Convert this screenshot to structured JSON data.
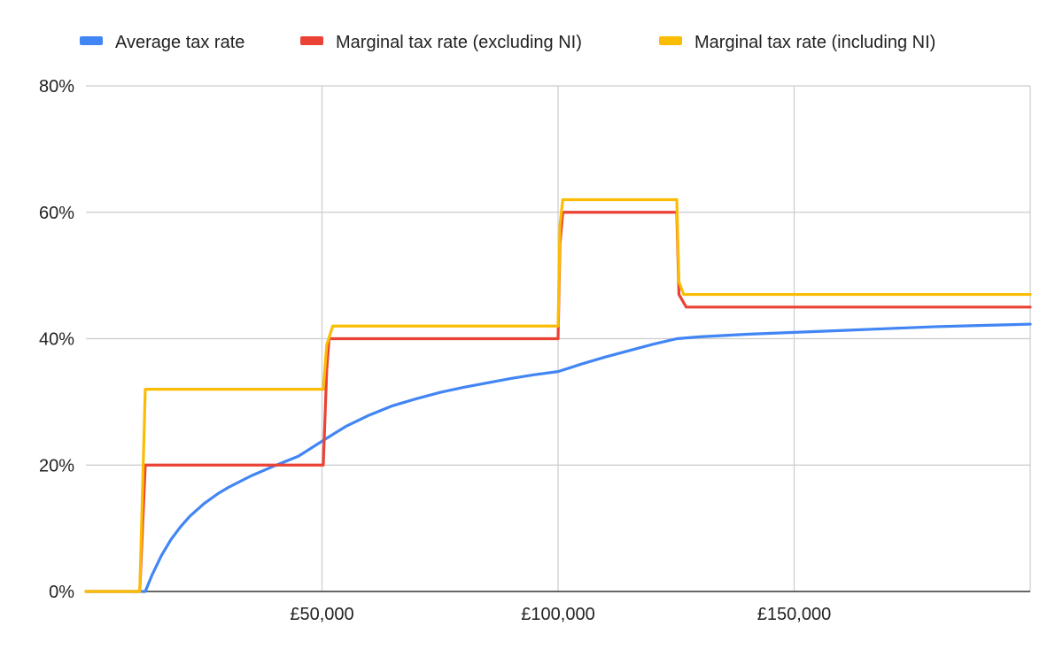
{
  "chart_data": {
    "type": "line",
    "title": "",
    "xlabel": "",
    "ylabel": "",
    "xlim": [
      0,
      200000
    ],
    "ylim": [
      0,
      80
    ],
    "grid": true,
    "legend_position": "top",
    "x_ticks": [
      {
        "value": 50000,
        "label": "£50,000"
      },
      {
        "value": 100000,
        "label": "£100,000"
      },
      {
        "value": 150000,
        "label": "£150,000"
      }
    ],
    "y_ticks": [
      {
        "value": 0,
        "label": "0%"
      },
      {
        "value": 20,
        "label": "20%"
      },
      {
        "value": 40,
        "label": "40%"
      },
      {
        "value": 60,
        "label": "60%"
      },
      {
        "value": 80,
        "label": "80%"
      }
    ],
    "series": [
      {
        "name": "Average tax rate",
        "color": "#4285f4",
        "x": [
          0,
          11000,
          12570,
          14000,
          16000,
          18000,
          20000,
          22000,
          25000,
          28000,
          30000,
          35000,
          40000,
          45000,
          50270,
          55000,
          60000,
          65000,
          70000,
          75000,
          80000,
          85000,
          90000,
          95000,
          100000,
          105000,
          110000,
          115000,
          120000,
          125140,
          130000,
          140000,
          150000,
          160000,
          170000,
          180000,
          190000,
          200000
        ],
        "values": [
          0,
          0,
          0,
          2.6,
          5.7,
          8.2,
          10.2,
          11.9,
          13.9,
          15.5,
          16.4,
          18.3,
          19.9,
          21.4,
          23.9,
          26.1,
          27.9,
          29.4,
          30.5,
          31.5,
          32.3,
          33.0,
          33.7,
          34.3,
          34.8,
          36.0,
          37.1,
          38.1,
          39.1,
          40.0,
          40.3,
          40.7,
          41.0,
          41.3,
          41.6,
          41.9,
          42.1,
          42.3
        ]
      },
      {
        "name": "Marginal tax rate (excluding NI)",
        "color": "#ea4335",
        "x": [
          0,
          11400,
          12570,
          13000,
          50270,
          51000,
          51500,
          52270,
          100000,
          100400,
          101000,
          125140,
          125600,
          127140,
          200000
        ],
        "values": [
          0,
          0,
          20,
          20,
          20,
          35,
          40,
          40,
          40,
          55,
          60,
          60,
          47,
          45,
          45
        ]
      },
      {
        "name": "Marginal tax rate (including NI)",
        "color": "#fbbc04",
        "x": [
          0,
          11400,
          12570,
          13000,
          50270,
          51000,
          52270,
          100000,
          100400,
          101000,
          125140,
          125600,
          126600,
          200000
        ],
        "values": [
          0,
          0,
          32,
          32,
          32,
          39,
          42,
          42,
          58,
          62,
          62,
          49,
          47,
          47
        ]
      }
    ]
  }
}
